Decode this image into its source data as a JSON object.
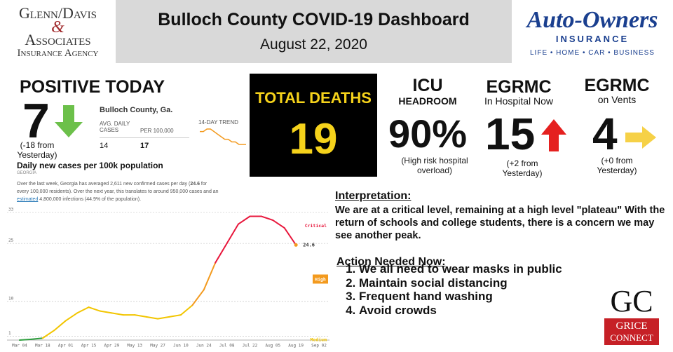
{
  "header": {
    "left_logo": {
      "line1": "Glenn/Davis",
      "amp": "&",
      "line2": "Associates",
      "line3": "Insurance Agency"
    },
    "title": "Bulloch County COVID-19 Dashboard",
    "date": "August 22, 2020",
    "right_logo": {
      "name": "Auto-Owners",
      "sub": "INSURANCE",
      "tagline": "LIFE • HOME • CAR • BUSINESS"
    }
  },
  "positive": {
    "title": "POSITIVE TODAY",
    "value": "7",
    "change": "(-18 from Yesterday)",
    "county": "Bulloch County, Ga.",
    "col1": "AVG. DAILY CASES",
    "col2": "PER 100,000",
    "val1": "14",
    "val2": "17",
    "trend_label": "14-DAY TREND",
    "trend": [
      19,
      19,
      20,
      20,
      19,
      18,
      17,
      16,
      16,
      15,
      15,
      14,
      14,
      14
    ]
  },
  "deaths": {
    "title": "TOTAL DEATHS",
    "value": "19"
  },
  "icu": {
    "title": "ICU",
    "subtitle": "HEADROOM",
    "value": "90%",
    "note": "(High risk hospital overload)"
  },
  "hospital": {
    "title": "EGRMC",
    "subtitle": "In Hospital Now",
    "value": "15",
    "note": "(+2 from Yesterday)"
  },
  "vents": {
    "title": "EGRMC",
    "subtitle": "on Vents",
    "value": "4",
    "note": "(+0 from Yesterday)"
  },
  "georgia": {
    "title": "Daily new cases per 100k population",
    "region": "GEORGIA",
    "text": [
      "Over the last week, Georgia has averaged 2,611 new confirmed cases per day (",
      "24.6",
      " for every 100,000 residents). Over the next year, this translates to around 950,000 cases and an ",
      "estimated",
      " 4,800,000 infections (44.9% of the population)."
    ]
  },
  "chart_data": {
    "type": "line",
    "categories": [
      "Mar 04",
      null,
      "Mar 18",
      null,
      "Apr 01",
      null,
      "Apr 15",
      null,
      "Apr 29",
      null,
      "May 13",
      null,
      "May 27",
      null,
      "Jun 10",
      null,
      "Jun 24",
      null,
      "Jul 08",
      null,
      "Jul 22",
      null,
      "Aug 05",
      null,
      "Aug 19",
      null,
      "Sep 02"
    ],
    "values": [
      0,
      0.2,
      0.5,
      2.5,
      5,
      7,
      8.5,
      7.5,
      7,
      6.5,
      6.5,
      6,
      5.5,
      6,
      6.5,
      9,
      13,
      20,
      25,
      30,
      32,
      32,
      31,
      29,
      24.6,
      null,
      null
    ],
    "value_labels": [
      null,
      null,
      null,
      null,
      null,
      null,
      null,
      null,
      null,
      null,
      null,
      null,
      null,
      null,
      null,
      null,
      null,
      null,
      null,
      null,
      null,
      null,
      null,
      null,
      "24.6",
      null,
      null
    ],
    "ylim": [
      0,
      33
    ],
    "yticks": [
      1,
      10,
      25,
      33
    ],
    "band_colors": [
      "#2e9e3e",
      "#f2c500",
      "#f39a1e",
      "#e8173c"
    ],
    "zones": [
      "Medium",
      "High",
      "Critical"
    ],
    "grid": true
  },
  "interpretation": {
    "title": "Interpretation:",
    "text": "We are at a critical level, remaining at a high level \"plateau\" With the return of schools and college students, there is a concern we may see another peak."
  },
  "actions": {
    "title": "Action Needed Now:",
    "items": [
      "We all need to wear masks in public",
      "Maintain social distancing",
      "Frequent hand washing",
      "Avoid crowds"
    ]
  },
  "grice": {
    "mark": "GC",
    "line1": "GRICE",
    "line2": "CONNECT"
  }
}
